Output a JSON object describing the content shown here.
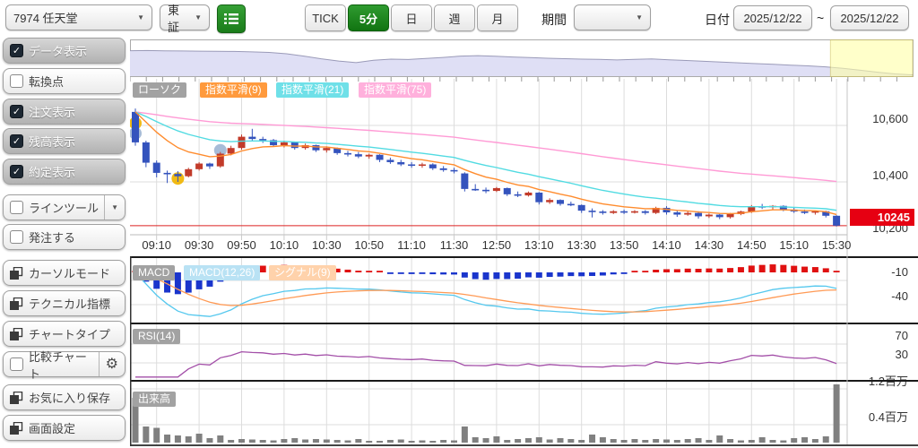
{
  "header": {
    "symbol": "7974 任天堂",
    "exchange": "東証",
    "timeframes": [
      "TICK",
      "5分",
      "日",
      "週",
      "月"
    ],
    "active_timeframe": "5分",
    "period_label": "期間",
    "date_label": "日付",
    "date_from": "2025/12/22",
    "date_separator": "~",
    "date_to": "2025/12/22"
  },
  "sidebar": {
    "items": [
      {
        "label": "データ表示",
        "checked": true
      },
      {
        "label": "転換点",
        "checked": false
      },
      {
        "label": "注文表示",
        "checked": true
      },
      {
        "label": "残高表示",
        "checked": true
      },
      {
        "label": "約定表示",
        "checked": true
      },
      {
        "label": "ラインツール",
        "checked": false
      },
      {
        "label": "発注する",
        "checked": false
      },
      {
        "label": "カーソルモード"
      },
      {
        "label": "テクニカル指標"
      },
      {
        "label": "チャートタイプ"
      },
      {
        "label": "比較チャート",
        "checked": false
      },
      {
        "label": "お気に入り保存"
      },
      {
        "label": "画面設定"
      }
    ]
  },
  "chart_data": {
    "type": "candlestick-multi-panel",
    "legend_main": [
      "ローソク",
      "指数平滑(9)",
      "指数平滑(21)",
      "指数平滑(75)"
    ],
    "legend_macd": [
      "MACD",
      "MACD(12,26)",
      "シグナル(9)"
    ],
    "legend_rsi": "RSI(14)",
    "legend_volume": "出来高",
    "current_price": 10245,
    "current_price_label": "10245",
    "y_axis_main": {
      "labels": [
        "10,600",
        "10,400",
        "10,200"
      ],
      "values": [
        10600,
        10400,
        10200
      ]
    },
    "y_axis_macd": {
      "labels": [
        "-10",
        "-40"
      ],
      "values": [
        -10,
        -40
      ]
    },
    "y_axis_rsi": {
      "labels": [
        "70",
        "30"
      ],
      "values": [
        70,
        30
      ]
    },
    "y_axis_volume": {
      "labels": [
        "1.2百万",
        "0.4百万"
      ],
      "values": [
        1.2,
        0.4
      ]
    },
    "x_labels": [
      "09:10",
      "09:30",
      "09:50",
      "10:10",
      "10:30",
      "10:50",
      "11:10",
      "11:30",
      "12:50",
      "13:10",
      "13:30",
      "13:50",
      "14:10",
      "14:30",
      "14:50",
      "15:10",
      "15:30"
    ],
    "ema_periods": [
      9,
      21,
      75
    ],
    "candles": [
      [
        10648,
        10660,
        10528,
        10540
      ],
      [
        10540,
        10546,
        10452,
        10468
      ],
      [
        10468,
        10476,
        10416,
        10432
      ],
      [
        10432,
        10440,
        10396,
        10428
      ],
      [
        10428,
        10438,
        10400,
        10420
      ],
      [
        10420,
        10450,
        10416,
        10445
      ],
      [
        10445,
        10470,
        10440,
        10465
      ],
      [
        10465,
        10468,
        10446,
        10455
      ],
      [
        10455,
        10506,
        10450,
        10500
      ],
      [
        10500,
        10528,
        10494,
        10520
      ],
      [
        10520,
        10568,
        10514,
        10560
      ],
      [
        10560,
        10588,
        10546,
        10552
      ],
      [
        10552,
        10560,
        10538,
        10548
      ],
      [
        10548,
        10552,
        10524,
        10530
      ],
      [
        10530,
        10546,
        10522,
        10540
      ],
      [
        10540,
        10542,
        10514,
        10520
      ],
      [
        10520,
        10536,
        10514,
        10530
      ],
      [
        10530,
        10532,
        10506,
        10512
      ],
      [
        10512,
        10526,
        10504,
        10520
      ],
      [
        10520,
        10522,
        10496,
        10502
      ],
      [
        10502,
        10510,
        10490,
        10498
      ],
      [
        10498,
        10506,
        10484,
        10490
      ],
      [
        10490,
        10500,
        10482,
        10496
      ],
      [
        10496,
        10498,
        10470,
        10478
      ],
      [
        10478,
        10486,
        10464,
        10470
      ],
      [
        10470,
        10478,
        10456,
        10462
      ],
      [
        10462,
        10470,
        10450,
        10458
      ],
      [
        10458,
        10468,
        10450,
        10462
      ],
      [
        10462,
        10466,
        10442,
        10448
      ],
      [
        10448,
        10456,
        10436,
        10442
      ],
      [
        10442,
        10450,
        10430,
        10438
      ],
      [
        10430,
        10434,
        10366,
        10375
      ],
      [
        10375,
        10392,
        10368,
        10372
      ],
      [
        10372,
        10380,
        10360,
        10368
      ],
      [
        10368,
        10382,
        10364,
        10378
      ],
      [
        10378,
        10380,
        10350,
        10356
      ],
      [
        10356,
        10366,
        10346,
        10352
      ],
      [
        10352,
        10366,
        10348,
        10362
      ],
      [
        10362,
        10364,
        10320,
        10328
      ],
      [
        10328,
        10342,
        10322,
        10336
      ],
      [
        10336,
        10338,
        10316,
        10322
      ],
      [
        10322,
        10330,
        10314,
        10318
      ],
      [
        10318,
        10320,
        10290,
        10298
      ],
      [
        10298,
        10306,
        10274,
        10295
      ],
      [
        10295,
        10300,
        10284,
        10290
      ],
      [
        10290,
        10300,
        10286,
        10296
      ],
      [
        10296,
        10302,
        10286,
        10292
      ],
      [
        10292,
        10300,
        10288,
        10296
      ],
      [
        10296,
        10300,
        10284,
        10290
      ],
      [
        10290,
        10312,
        10286,
        10308
      ],
      [
        10308,
        10314,
        10284,
        10292
      ],
      [
        10292,
        10298,
        10276,
        10284
      ],
      [
        10284,
        10296,
        10280,
        10290
      ],
      [
        10290,
        10296,
        10270,
        10278
      ],
      [
        10278,
        10288,
        10272,
        10284
      ],
      [
        10284,
        10286,
        10268,
        10275
      ],
      [
        10275,
        10290,
        10270,
        10286
      ],
      [
        10286,
        10298,
        10282,
        10295
      ],
      [
        10295,
        10318,
        10290,
        10314
      ],
      [
        10314,
        10322,
        10304,
        10310
      ],
      [
        10310,
        10318,
        10302,
        10315
      ],
      [
        10315,
        10317,
        10296,
        10302
      ],
      [
        10302,
        10308,
        10290,
        10295
      ],
      [
        10295,
        10302,
        10286,
        10292
      ],
      [
        10292,
        10300,
        10284,
        10296
      ],
      [
        10296,
        10298,
        10274,
        10280
      ],
      [
        10280,
        10282,
        10242,
        10245
      ]
    ],
    "volumes": [
      1.0,
      0.36,
      0.33,
      0.18,
      0.16,
      0.14,
      0.2,
      0.1,
      0.16,
      0.06,
      0.08,
      0.07,
      0.06,
      0.05,
      0.08,
      0.1,
      0.07,
      0.08,
      0.07,
      0.06,
      0.05,
      0.08,
      0.04,
      0.04,
      0.06,
      0.07,
      0.04,
      0.05,
      0.04,
      0.06,
      0.05,
      0.36,
      0.12,
      0.1,
      0.14,
      0.06,
      0.08,
      0.1,
      0.12,
      0.07,
      0.1,
      0.08,
      0.06,
      0.18,
      0.12,
      0.08,
      0.06,
      0.08,
      0.06,
      0.08,
      0.07,
      0.06,
      0.08,
      0.1,
      0.06,
      0.16,
      0.08,
      0.05,
      0.06,
      0.12,
      0.06,
      0.05,
      0.1,
      0.12,
      0.08,
      0.14,
      1.3
    ],
    "markers": [
      {
        "index": 0,
        "price": 10608,
        "color_key": "marker_yellow"
      },
      {
        "index": 0,
        "price": 10572,
        "color_key": "marker_blue"
      },
      {
        "index": 4,
        "price": 10412,
        "color_key": "marker_yellow"
      },
      {
        "index": 8,
        "price": 10512,
        "color_key": "marker_blue"
      }
    ],
    "navigator": {
      "points": [
        10560,
        10562,
        10558,
        10556,
        10554,
        10552,
        10550,
        10545,
        10538,
        10520,
        10490,
        10455,
        10425,
        10405,
        10435,
        10450,
        10445,
        10458,
        10472,
        10490,
        10496,
        10488,
        10478,
        10470,
        10462,
        10456,
        10450,
        10446,
        10440,
        10448,
        10452,
        10442,
        10432,
        10422,
        10412,
        10402,
        10392,
        10382,
        10372,
        10362,
        10350,
        10330,
        10305,
        10280,
        10258,
        10246
      ],
      "selection_start_frac": 0.895
    },
    "colors": {
      "up": "#c23b2a",
      "down": "#3453bd",
      "ema9": "#ff8c2e",
      "ema21": "#52dbe2",
      "ema75": "#ff9ad5",
      "macd_line": "#55c8ee",
      "signal_line": "#ff9a55",
      "hist_pos": "#e01111",
      "hist_neg": "#1a35cc",
      "rsi": "#a34fa8",
      "volume_bar": "#808080",
      "price_line": "#dd2222",
      "marker_yellow": "#f0b400",
      "marker_blue": "#9fb6d4",
      "grid": "#dddddd"
    }
  }
}
